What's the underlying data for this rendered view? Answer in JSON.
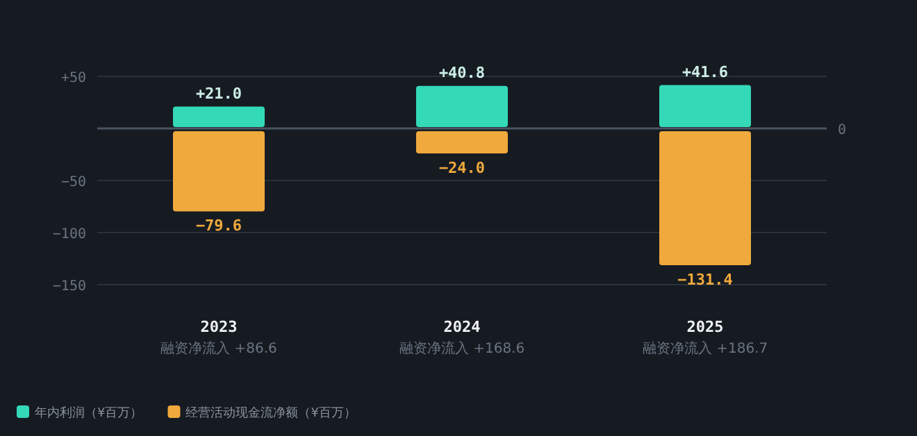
{
  "chart_data": {
    "type": "bar",
    "stacked": true,
    "categories": [
      "2023",
      "2024",
      "2025"
    ],
    "series": [
      {
        "name": "年内利润（¥百万）",
        "color": "#34d9b8",
        "values": [
          21.0,
          40.8,
          41.6
        ],
        "value_labels": [
          "+21.0",
          "+40.8",
          "+41.6"
        ]
      },
      {
        "name": "经营活动现金流净额（¥百万）",
        "color": "#f0a93c",
        "values": [
          -79.6,
          -24.0,
          -131.4
        ],
        "value_labels": [
          "−79.6",
          "−24.0",
          "−131.4"
        ]
      }
    ],
    "ylim": [
      -150,
      50
    ],
    "yticks": [
      {
        "value": 50,
        "label": "+50"
      },
      {
        "value": -50,
        "label": "−50"
      },
      {
        "value": -100,
        "label": "−100"
      },
      {
        "value": -150,
        "label": "−150"
      }
    ],
    "ref_lines": [
      {
        "axis": "y",
        "value": 0,
        "label": "0"
      }
    ],
    "grid": "y",
    "legend": "bottom left",
    "annotations": [
      "融资净流入 +86.6",
      "融资净流入 +168.6",
      "融资净流入 +186.7"
    ]
  }
}
